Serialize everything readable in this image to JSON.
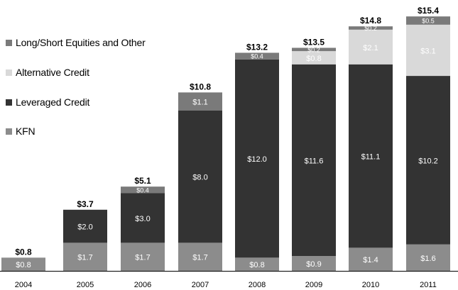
{
  "chart_data": {
    "type": "bar",
    "stacked": true,
    "title": "",
    "xlabel": "",
    "ylabel": "",
    "ylim": [
      0,
      16
    ],
    "categories": [
      "2004",
      "2005",
      "2006",
      "2007",
      "2008",
      "2009",
      "2010",
      "2011"
    ],
    "series": [
      {
        "name": "KFN",
        "color": "#8c8c8c",
        "values": [
          0.8,
          1.7,
          1.7,
          1.7,
          0.8,
          0.9,
          1.4,
          1.6
        ],
        "labels": [
          "$0.8",
          "$1.7",
          "$1.7",
          "$1.7",
          "$0.8",
          "$0.9",
          "$1.4",
          "$1.6"
        ]
      },
      {
        "name": "Leveraged Credit",
        "color": "#333333",
        "values": [
          0,
          2.0,
          3.0,
          8.0,
          12.0,
          11.6,
          11.1,
          10.2
        ],
        "labels": [
          "",
          "$2.0",
          "$3.0",
          "$8.0",
          "$12.0",
          "$11.6",
          "$11.1",
          "$10.2"
        ]
      },
      {
        "name": "Alternative Credit",
        "color": "#d9d9d9",
        "values": [
          0,
          0,
          0,
          0,
          0,
          0.8,
          2.1,
          3.1
        ],
        "labels": [
          "",
          "",
          "",
          "",
          "",
          "$0.8",
          "$2.1",
          "$3.1"
        ]
      },
      {
        "name": "Long/Short Equities and Other",
        "color": "#7a7a7a",
        "values": [
          0,
          0,
          0.4,
          1.1,
          0.4,
          0.2,
          0.2,
          0.5
        ],
        "labels": [
          "",
          "",
          "$0.4",
          "$1.1",
          "$0.4",
          "$0.2",
          "$0.2",
          "$0.5"
        ]
      }
    ],
    "totals": [
      0.8,
      3.7,
      5.1,
      10.8,
      13.2,
      13.5,
      14.8,
      15.4
    ],
    "total_labels": [
      "$0.8",
      "$3.7",
      "$5.1",
      "$10.8",
      "$13.2",
      "$13.5",
      "$14.8",
      "$15.4"
    ],
    "legend": [
      {
        "name": "Long/Short Equities and Other",
        "color": "#7a7a7a"
      },
      {
        "name": "Alternative Credit",
        "color": "#d9d9d9"
      },
      {
        "name": "Leveraged Credit",
        "color": "#333333"
      },
      {
        "name": "KFN",
        "color": "#8c8c8c"
      }
    ],
    "legend_position": "left"
  }
}
